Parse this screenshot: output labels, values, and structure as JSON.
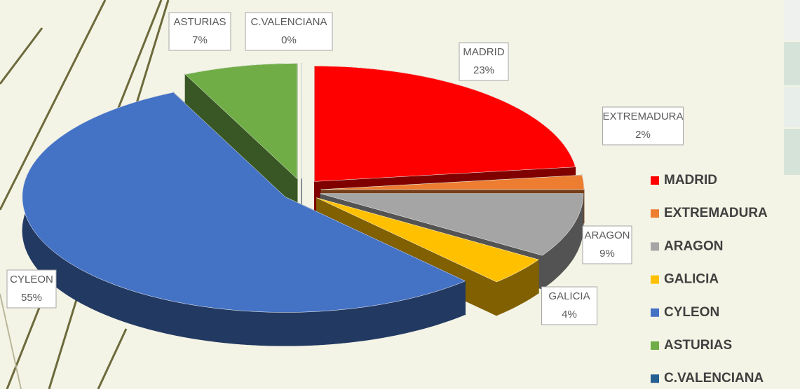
{
  "chart_data": {
    "type": "pie3d",
    "categories": [
      "MADRID",
      "EXTREMADURA",
      "ARAGON",
      "GALICIA",
      "CYLEON",
      "ASTURIAS",
      "C.VALENCIANA"
    ],
    "values": [
      23,
      2,
      9,
      4,
      55,
      7,
      0
    ],
    "value_labels": [
      "23%",
      "2%",
      "9%",
      "4%",
      "55%",
      "7%",
      "0%"
    ],
    "colors": [
      "#ff0000",
      "#ed7d31",
      "#a5a5a5",
      "#ffc000",
      "#4472c4",
      "#70ad47",
      "#255e91"
    ],
    "legend": "right"
  }
}
